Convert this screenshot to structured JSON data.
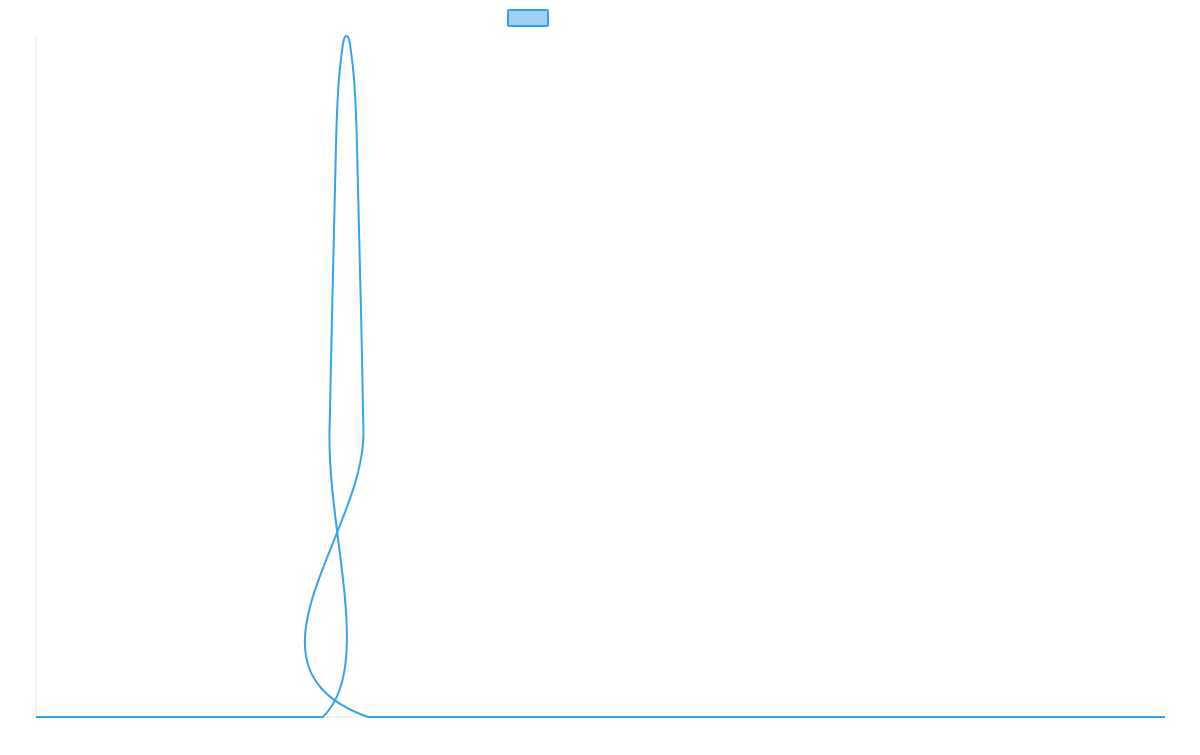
{
  "chart_data": {
    "type": "line",
    "title": "",
    "xlabel": "",
    "ylabel": "",
    "legend": {
      "placement": "top-center",
      "entries": [
        {
          "label": "",
          "swatch_fill": "#9dd0f4",
          "swatch_stroke": "#36a2eb"
        }
      ]
    },
    "x_range": [
      0,
      100
    ],
    "ylim": [
      0,
      1
    ],
    "grid": false,
    "series": [
      {
        "color": "#36a2eb",
        "x": [
          0,
          25.4,
          26.0,
          26.6,
          27.2,
          27.5,
          27.8,
          28.4,
          29.0,
          29.4,
          100
        ],
        "y": [
          0,
          0,
          0.42,
          0.86,
          0.99,
          1.0,
          0.99,
          0.86,
          0.42,
          0,
          0
        ]
      }
    ]
  }
}
